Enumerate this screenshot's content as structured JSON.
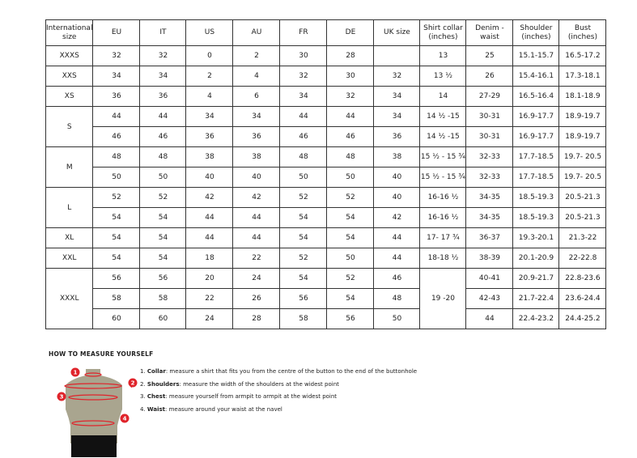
{
  "table": {
    "headers": [
      "International size",
      "EU",
      "IT",
      "US",
      "AU",
      "FR",
      "DE",
      "UK size",
      "Shirt collar (inches)",
      "Denim - waist",
      "Shoulder (inches)",
      "Bust (inches)"
    ],
    "groups": [
      {
        "size": "XXXS",
        "rows": [
          [
            "32",
            "32",
            "0",
            "2",
            "30",
            "28",
            "",
            "13",
            "25",
            "15.1-15.7",
            "16.5-17.2"
          ]
        ]
      },
      {
        "size": "XXS",
        "rows": [
          [
            "34",
            "34",
            "2",
            "4",
            "32",
            "30",
            "32",
            "13 ½",
            "26",
            "15.4-16.1",
            "17.3-18.1"
          ]
        ]
      },
      {
        "size": "XS",
        "rows": [
          [
            "36",
            "36",
            "4",
            "6",
            "34",
            "32",
            "34",
            "14",
            "27-29",
            "16.5-16.4",
            "18.1-18.9"
          ]
        ]
      },
      {
        "size": "S",
        "rows": [
          [
            "44",
            "44",
            "34",
            "34",
            "44",
            "44",
            "34",
            "14 ½ -15",
            "30-31",
            "16.9-17.7",
            "18.9-19.7"
          ],
          [
            "46",
            "46",
            "36",
            "36",
            "46",
            "46",
            "36",
            "14 ½ -15",
            "30-31",
            "16.9-17.7",
            "18.9-19.7"
          ]
        ]
      },
      {
        "size": "M",
        "rows": [
          [
            "48",
            "48",
            "38",
            "38",
            "48",
            "48",
            "38",
            "15 ½ - 15 ¾",
            "32-33",
            "17.7-18.5",
            "19.7- 20.5"
          ],
          [
            "50",
            "50",
            "40",
            "40",
            "50",
            "50",
            "40",
            "15 ½ - 15 ¾",
            "32-33",
            "17.7-18.5",
            "19.7- 20.5"
          ]
        ]
      },
      {
        "size": "L",
        "rows": [
          [
            "52",
            "52",
            "42",
            "42",
            "52",
            "52",
            "40",
            "16-16 ½",
            "34-35",
            "18.5-19.3",
            "20.5-21.3"
          ],
          [
            "54",
            "54",
            "44",
            "44",
            "54",
            "54",
            "42",
            "16-16 ½",
            "34-35",
            "18.5-19.3",
            "20.5-21.3"
          ]
        ]
      },
      {
        "size": "XL",
        "rows": [
          [
            "54",
            "54",
            "44",
            "44",
            "54",
            "54",
            "44",
            "17- 17 ¾",
            "36-37",
            "19.3-20.1",
            "21.3-22"
          ]
        ]
      },
      {
        "size": "XXL",
        "rows": [
          [
            "54",
            "54",
            "18",
            "22",
            "52",
            "50",
            "44",
            "18-18 ½",
            "38-39",
            "20.1-20.9",
            "22-22.8"
          ]
        ]
      },
      {
        "size": "XXXL",
        "collar": "19 -20",
        "rows": [
          [
            "56",
            "56",
            "20",
            "24",
            "54",
            "52",
            "46",
            null,
            "40-41",
            "20.9-21.7",
            "22.8-23.6"
          ],
          [
            "58",
            "58",
            "22",
            "26",
            "56",
            "54",
            "48",
            null,
            "42-43",
            "21.7-22.4",
            "23.6-24.4"
          ],
          [
            "60",
            "60",
            "24",
            "28",
            "58",
            "56",
            "50",
            null,
            "44",
            "22.4-23.2",
            "24.4-25.2"
          ]
        ]
      }
    ]
  },
  "howto": {
    "title": "HOW TO MEASURE YOURSELF",
    "steps": [
      {
        "num": "1.",
        "term": "Collar",
        "text": ": measure a shirt that fits you from the centre of the button to the end of the buttonhole"
      },
      {
        "num": "2.",
        "term": "Shoulders",
        "text": ": measure the width of the shoulders at the widest point"
      },
      {
        "num": "3.",
        "term": "Chest",
        "text": ": measure yourself from armpit to armpit at the widest point"
      },
      {
        "num": "4.",
        "term": "Waist",
        "text": ": measure around your waist at the navel"
      }
    ],
    "markers": [
      "1",
      "2",
      "3",
      "4"
    ]
  },
  "colors": {
    "marker": "#e0242b",
    "torso": "#a9a58f"
  }
}
